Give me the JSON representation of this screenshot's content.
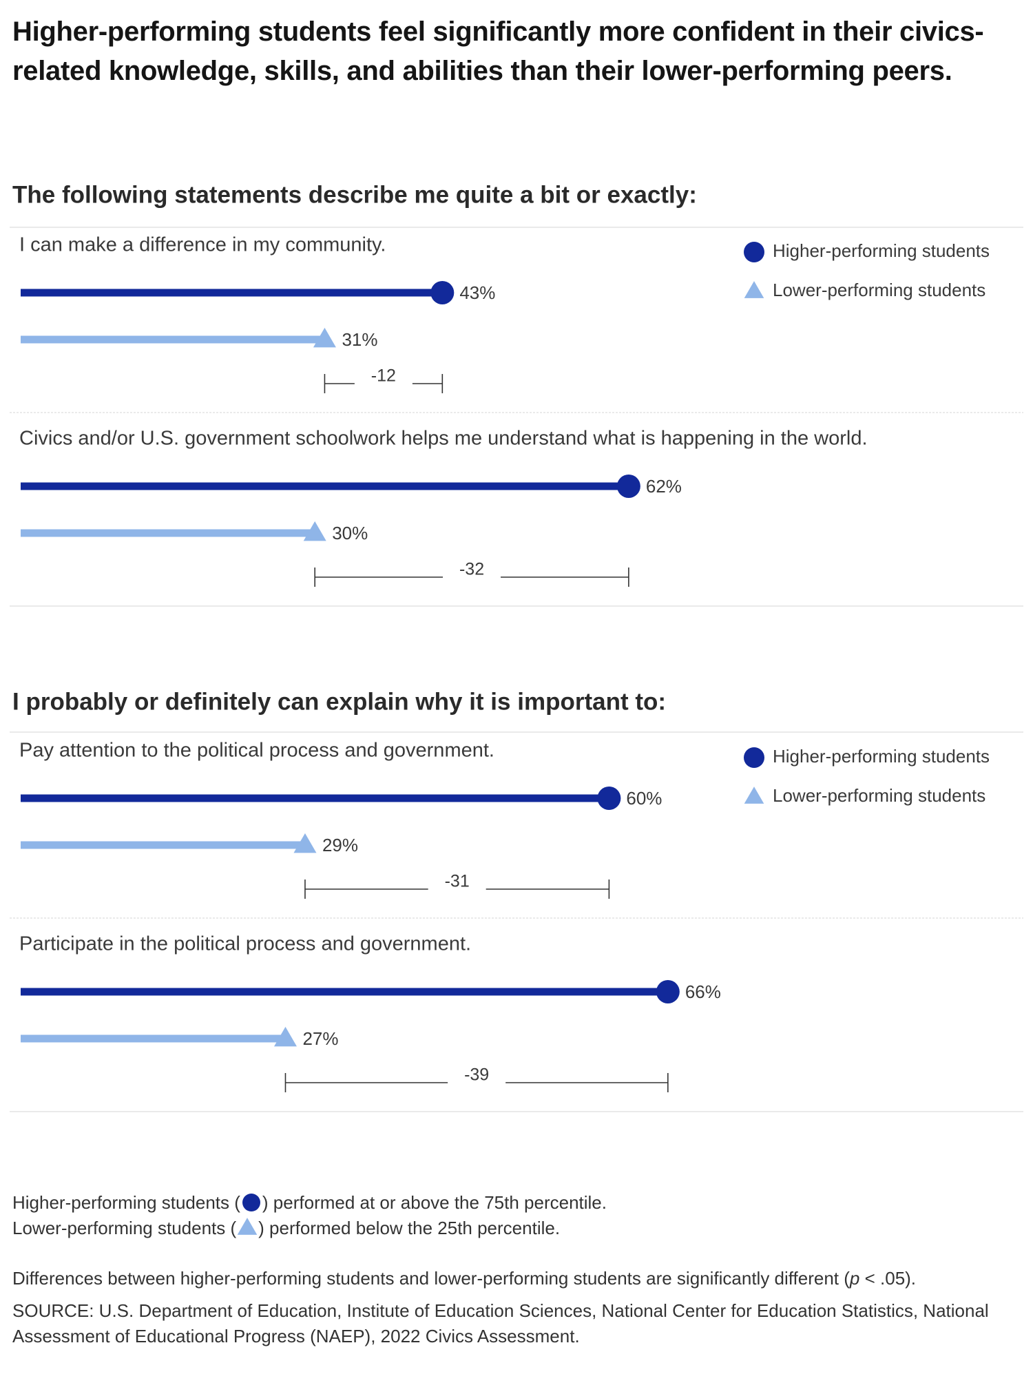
{
  "title": "Higher-performing students feel significantly more confident in their civics-related knowledge, skills, and abilities than their lower-performing peers.",
  "chart_data": [
    {
      "type": "bar",
      "subtitle": "The following statements describe me quite a bit or exactly:",
      "categories": [
        "I can make a difference in my community.",
        "Civics and/or U.S. government schoolwork helps me understand what is happening in the world."
      ],
      "series": [
        {
          "name": "Higher-performing students",
          "color": "#12299a",
          "marker": "circle",
          "values": [
            43,
            62
          ],
          "value_labels": [
            "43%",
            "62%"
          ]
        },
        {
          "name": "Lower-performing students",
          "color": "#8fb5e8",
          "marker": "triangle",
          "values": [
            31,
            30
          ],
          "value_labels": [
            "31%",
            "30%"
          ]
        }
      ],
      "differences": [
        -12,
        -32
      ]
    },
    {
      "type": "bar",
      "subtitle": "I probably or definitely can explain why it is important to:",
      "categories": [
        "Pay attention to the political process and government.",
        "Participate in the political process and government."
      ],
      "series": [
        {
          "name": "Higher-performing students",
          "color": "#12299a",
          "marker": "circle",
          "values": [
            60,
            66
          ],
          "value_labels": [
            "60%",
            "66%"
          ]
        },
        {
          "name": "Lower-performing students",
          "color": "#8fb5e8",
          "marker": "triangle",
          "values": [
            29,
            27
          ],
          "value_labels": [
            "29%",
            "27%"
          ]
        }
      ],
      "differences": [
        -31,
        -39
      ]
    }
  ],
  "notes": [
    {
      "before": "Higher-performing students (",
      "after": ") performed at or above the 75th percentile."
    },
    {
      "before": "Lower-performing students (",
      "after": ") performed below the 25th percentile."
    }
  ],
  "significance": {
    "before": "Differences between higher-performing students and lower-performing students are significantly different (",
    "italic": "p",
    "after": " < .05)."
  },
  "source": "SOURCE: U.S. Department of Education, Institute of Education Sciences, National Center for Education Statistics, National Assessment of Educational Progress (NAEP), 2022 Civics Assessment."
}
